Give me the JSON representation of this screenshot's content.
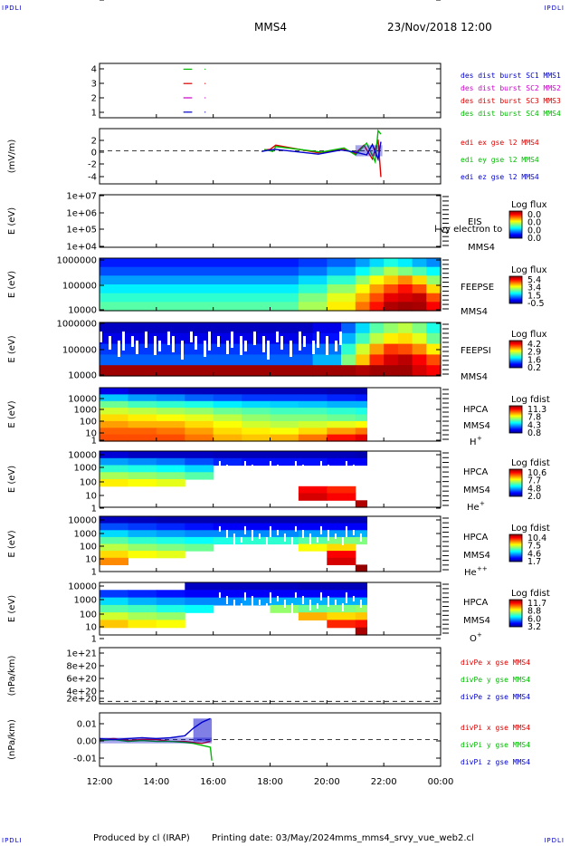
{
  "header": {
    "mission": "MMS4",
    "date": "23/Nov/2018 12:00",
    "corner_tag": "IPDLI"
  },
  "footer": {
    "produced_by": "Produced by  cl (IRAP)",
    "printing_date": "Printing date: 03/May/2024",
    "script": "mms_mms4_srvy_vue_web2.cl"
  },
  "time_axis": {
    "ticks": [
      "12:00",
      "14:00",
      "16:00",
      "18:00",
      "20:00",
      "22:00",
      "00:00"
    ],
    "start_hour": 12,
    "end_hour": 24
  },
  "colors": {
    "red": "#dd0000",
    "green": "#00bb00",
    "blue": "#0000cc",
    "magenta": "#cc00cc",
    "black": "#000000"
  },
  "chart_data": [
    {
      "type": "scatter",
      "id": "burst",
      "yticks": [
        "4",
        "3",
        "2",
        "1"
      ],
      "ylim": [
        0.6,
        4.4
      ],
      "legend": [
        {
          "label": "des dist burst SC1 MMS1",
          "color": "#0000cc"
        },
        {
          "label": "des dist burst SC2 MMS2",
          "color": "#cc00cc"
        },
        {
          "label": "des dist burst SC3 MMS3",
          "color": "#dd0000"
        },
        {
          "label": "des dist burst SC4 MMS4",
          "color": "#00bb00"
        }
      ],
      "series": [
        {
          "name": "des dist burst SC4 MMS4",
          "y": 4,
          "x": [
            14.95,
            15.1,
            15.7
          ],
          "color": "#00bb00"
        },
        {
          "name": "des dist burst SC3 MMS3",
          "y": 3,
          "x": [
            14.95,
            15.1,
            15.7
          ],
          "color": "#dd0000"
        },
        {
          "name": "des dist burst SC2 MMS2",
          "y": 2,
          "x": [
            14.95,
            15.1,
            15.7
          ],
          "color": "#cc00cc"
        },
        {
          "name": "des dist burst SC1 MMS1",
          "y": 1,
          "x": [
            14.95,
            15.1,
            15.7
          ],
          "color": "#0000cc"
        }
      ]
    },
    {
      "type": "line",
      "id": "edi",
      "ylabel": "(mV/m)",
      "yticks": [
        "2",
        "0",
        "-2",
        "-4"
      ],
      "ylim": [
        -4.8,
        3.2
      ],
      "legend": [
        {
          "label": "edi ex gse l2 MMS4",
          "color": "#dd0000"
        },
        {
          "label": "edi ey gse l2 MMS4",
          "color": "#00bb00"
        },
        {
          "label": "edi ez gse l2 MMS4",
          "color": "#0000cc"
        }
      ],
      "series": [
        {
          "name": "edi ex gse l2 MMS4",
          "color": "#dd0000",
          "x": [
            17.8,
            18.0,
            18.2,
            19.7,
            20.6,
            21.0,
            21.3,
            21.6,
            21.8,
            21.9
          ],
          "y": [
            0.1,
            0.2,
            0.8,
            -0.3,
            0.2,
            -0.4,
            0.8,
            -1.2,
            1.6,
            -3.8
          ]
        },
        {
          "name": "edi ey gse l2 MMS4",
          "color": "#00bb00",
          "x": [
            17.8,
            18.1,
            18.2,
            19.8,
            20.6,
            21.0,
            21.4,
            21.7,
            21.8,
            21.9
          ],
          "y": [
            0.2,
            -0.1,
            0.6,
            -0.2,
            0.4,
            -0.6,
            1.1,
            -1.6,
            2.9,
            2.4
          ]
        },
        {
          "name": "edi ez gse l2 MMS4",
          "color": "#0000cc",
          "x": [
            17.7,
            18.0,
            18.2,
            19.7,
            20.5,
            21.0,
            21.4,
            21.6,
            21.8,
            21.9
          ],
          "y": [
            -0.1,
            0.1,
            0.2,
            -0.5,
            0.1,
            -0.2,
            -0.6,
            0.9,
            -1.2,
            1.3
          ]
        }
      ]
    },
    {
      "type": "heatmap",
      "id": "eis",
      "ylabel": "E (eV)",
      "yticks": [
        "1e+07",
        "1e+06",
        "1e+05",
        "1e+04"
      ],
      "labels": [
        "EIS",
        "MMS4"
      ],
      "overlay_label": "l-vy electron to",
      "colorbar_title": "Log flux",
      "colorbar_ticks": [
        "0.0",
        "0.0",
        "0.0",
        "0.0"
      ],
      "cells": []
    },
    {
      "type": "heatmap",
      "id": "feepse",
      "ylabel": "E (eV)",
      "yticks": [
        "1000000",
        "100000",
        "10000"
      ],
      "labels": [
        "FEEPSE",
        "MMS4"
      ],
      "colorbar_title": "Log flux",
      "colorbar_ticks": [
        "5.4",
        "3.4",
        "1.5",
        "-0.5"
      ],
      "x_breaks": [
        12.0,
        19.0,
        20.0,
        21.0,
        21.5,
        22.0,
        22.5,
        23.0,
        23.5,
        24.0
      ],
      "rows": [
        [
          0.15,
          0.18,
          0.22,
          0.28,
          0.34,
          0.4,
          0.36,
          0.3,
          0.26
        ],
        [
          0.2,
          0.24,
          0.3,
          0.38,
          0.46,
          0.55,
          0.5,
          0.45,
          0.38
        ],
        [
          0.28,
          0.34,
          0.42,
          0.52,
          0.62,
          0.68,
          0.74,
          0.66,
          0.52
        ],
        [
          0.36,
          0.42,
          0.52,
          0.62,
          0.72,
          0.8,
          0.86,
          0.8,
          0.66
        ],
        [
          0.42,
          0.5,
          0.6,
          0.7,
          0.8,
          0.9,
          0.92,
          0.94,
          0.8
        ],
        [
          0.46,
          0.54,
          0.64,
          0.76,
          0.86,
          0.96,
          0.98,
          0.97,
          0.88
        ]
      ]
    },
    {
      "type": "heatmap",
      "id": "feepsi",
      "ylabel": "E (eV)",
      "yticks": [
        "1000000",
        "100000",
        "10000"
      ],
      "labels": [
        "FEEPSI",
        "MMS4"
      ],
      "colorbar_title": "Log flux",
      "colorbar_ticks": [
        "4.2",
        "2.9",
        "1.6",
        "0.2"
      ],
      "x_breaks": [
        12.0,
        19.5,
        20.5,
        21.0,
        21.5,
        22.0,
        22.5,
        23.0,
        23.5,
        24.0
      ],
      "rows": [
        [
          0.06,
          0.1,
          0.22,
          0.34,
          0.46,
          0.52,
          0.56,
          0.5,
          0.4
        ],
        [
          0.1,
          0.14,
          0.3,
          0.44,
          0.56,
          0.64,
          0.66,
          0.6,
          0.48
        ],
        [
          0.18,
          0.24,
          0.42,
          0.58,
          0.72,
          0.82,
          0.8,
          0.74,
          0.64
        ],
        [
          0.22,
          0.3,
          0.5,
          0.68,
          0.84,
          0.92,
          0.95,
          0.88,
          0.8
        ],
        [
          0.98,
          0.98,
          0.98,
          0.96,
          0.98,
          0.98,
          0.98,
          0.92,
          0.88
        ]
      ]
    },
    {
      "type": "heatmap",
      "id": "hpca-h",
      "ylabel": "E (eV)",
      "yticks": [
        "10000",
        "1000",
        "100",
        "10",
        "1"
      ],
      "labels": [
        "HPCA",
        "MMS4",
        "H",
        "+"
      ],
      "colorbar_title": "Log fdist",
      "colorbar_ticks": [
        "11.3",
        "7.8",
        "4.3",
        "0.8"
      ],
      "x_breaks": [
        12.0,
        13.0,
        14.0,
        15.0,
        16.0,
        17.0,
        18.0,
        19.0,
        20.0,
        21.0,
        21.4
      ],
      "rows": [
        [
          0.1,
          0.06,
          0.06,
          0.05,
          0.05,
          0.05,
          0.05,
          0.05,
          0.04,
          0.04
        ],
        [
          0.32,
          0.28,
          0.26,
          0.22,
          0.2,
          0.18,
          0.18,
          0.18,
          0.16,
          0.15
        ],
        [
          0.48,
          0.44,
          0.42,
          0.4,
          0.36,
          0.34,
          0.33,
          0.32,
          0.3,
          0.3
        ],
        [
          0.58,
          0.56,
          0.54,
          0.52,
          0.48,
          0.46,
          0.44,
          0.44,
          0.42,
          0.4
        ],
        [
          0.66,
          0.64,
          0.62,
          0.6,
          0.56,
          0.52,
          0.5,
          0.5,
          0.48,
          0.46
        ],
        [
          0.72,
          0.7,
          0.7,
          0.66,
          0.62,
          0.58,
          0.56,
          0.58,
          0.6,
          0.62
        ],
        [
          0.78,
          0.78,
          0.76,
          0.72,
          0.66,
          0.64,
          0.62,
          0.66,
          0.72,
          0.76
        ],
        [
          0.8,
          0.8,
          0.8,
          0.76,
          0.7,
          0.68,
          0.7,
          0.76,
          0.86,
          0.9
        ]
      ]
    },
    {
      "type": "heatmap",
      "id": "hpca-he",
      "ylabel": "E (eV)",
      "yticks": [
        "10000",
        "1000",
        "100",
        "10",
        "1"
      ],
      "labels": [
        "HPCA",
        "MMS4",
        "He",
        "+"
      ],
      "colorbar_title": "Log fdist",
      "colorbar_ticks": [
        "10.6",
        "7.7",
        "4.8",
        "2.0"
      ],
      "x_breaks": [
        12.0,
        13.0,
        14.0,
        15.0,
        16.0,
        17.0,
        18.0,
        19.0,
        20.0,
        21.0,
        21.4
      ],
      "rows": [
        [
          0.08,
          0.06,
          0.06,
          0.06,
          0.05,
          0.05,
          0.05,
          0.05,
          0.05,
          0.04
        ],
        [
          0.28,
          0.26,
          0.24,
          0.2,
          0.16,
          0.14,
          0.14,
          0.14,
          0.12,
          0.12
        ],
        [
          0.42,
          0.4,
          0.38,
          0.34,
          -1,
          -1,
          -1,
          -1,
          -1,
          -1
        ],
        [
          0.54,
          0.52,
          0.5,
          0.46,
          -1,
          -1,
          -1,
          -1,
          -1,
          -1
        ],
        [
          0.64,
          0.62,
          0.6,
          -1,
          -1,
          -1,
          -1,
          -1,
          -1,
          -1
        ],
        [
          -1,
          -1,
          -1,
          -1,
          -1,
          -1,
          -1,
          0.88,
          0.84,
          -1
        ],
        [
          -1,
          -1,
          -1,
          -1,
          -1,
          -1,
          -1,
          0.92,
          0.88,
          -1
        ],
        [
          -1,
          -1,
          -1,
          -1,
          -1,
          -1,
          -1,
          -1,
          -1,
          0.96
        ]
      ]
    },
    {
      "type": "heatmap",
      "id": "hpca-hepp",
      "ylabel": "E (eV)",
      "yticks": [
        "10000",
        "1000",
        "100",
        "10",
        "1"
      ],
      "labels": [
        "HPCA",
        "MMS4",
        "He",
        "++"
      ],
      "colorbar_title": "Log fdist",
      "colorbar_ticks": [
        "10.4",
        "7.5",
        "4.6",
        "1.7"
      ],
      "x_breaks": [
        12.0,
        13.0,
        14.0,
        15.0,
        16.0,
        17.0,
        18.0,
        19.0,
        20.0,
        21.0,
        21.4
      ],
      "rows": [
        [
          0.06,
          0.05,
          0.04,
          0.04,
          0.04,
          0.04,
          0.04,
          0.04,
          0.04,
          0.04
        ],
        [
          0.2,
          0.18,
          0.16,
          0.14,
          0.12,
          0.12,
          0.12,
          0.12,
          0.12,
          0.12
        ],
        [
          0.34,
          0.3,
          0.28,
          0.26,
          0.26,
          0.26,
          0.26,
          0.28,
          0.28,
          0.3
        ],
        [
          0.46,
          0.42,
          0.4,
          0.38,
          0.4,
          0.42,
          0.42,
          0.46,
          0.5,
          0.5
        ],
        [
          0.56,
          0.52,
          0.5,
          0.48,
          -1,
          -1,
          -1,
          0.62,
          0.66,
          -1
        ],
        [
          0.66,
          0.62,
          0.6,
          -1,
          -1,
          -1,
          -1,
          -1,
          0.88,
          -1
        ],
        [
          0.74,
          -1,
          -1,
          -1,
          -1,
          -1,
          -1,
          -1,
          0.92,
          -1
        ],
        [
          -1,
          -1,
          -1,
          -1,
          -1,
          -1,
          -1,
          -1,
          -1,
          0.99
        ]
      ]
    },
    {
      "type": "heatmap",
      "id": "hpca-o",
      "ylabel": "E (eV)",
      "yticks": [
        "10000",
        "1000",
        "100",
        "10",
        "1"
      ],
      "labels": [
        "HPCA",
        "MMS4",
        "O",
        "+"
      ],
      "colorbar_title": "Log fdist",
      "colorbar_ticks": [
        "11.7",
        "8.8",
        "6.0",
        "3.2"
      ],
      "x_breaks": [
        12.0,
        13.0,
        14.0,
        15.0,
        16.0,
        17.0,
        18.0,
        19.0,
        20.0,
        21.0,
        21.4
      ],
      "rows": [
        [
          -1,
          -1,
          -1,
          0.06,
          0.06,
          0.06,
          0.06,
          0.05,
          0.05,
          0.05
        ],
        [
          0.18,
          0.16,
          0.14,
          0.12,
          0.12,
          0.12,
          0.12,
          0.12,
          0.12,
          0.12
        ],
        [
          0.34,
          0.3,
          0.28,
          0.26,
          0.26,
          0.28,
          0.3,
          0.3,
          0.3,
          0.3
        ],
        [
          0.46,
          0.44,
          0.4,
          0.38,
          -1,
          -1,
          0.52,
          0.48,
          0.5,
          0.52
        ],
        [
          0.58,
          0.54,
          0.52,
          -1,
          -1,
          -1,
          -1,
          0.7,
          0.66,
          0.68
        ],
        [
          0.68,
          0.64,
          0.62,
          -1,
          -1,
          -1,
          -1,
          -1,
          0.84,
          0.86
        ],
        [
          -1,
          -1,
          -1,
          -1,
          -1,
          -1,
          -1,
          -1,
          -1,
          0.97
        ]
      ]
    },
    {
      "type": "line",
      "id": "divpe",
      "ylabel": "(nPa/km)",
      "yticks": [
        "1e+21",
        "8e+20",
        "6e+20",
        "4e+20",
        "2e+20",
        "0"
      ],
      "ylim": [
        -5e+19,
        1.1e+21
      ],
      "legend": [
        {
          "label": "divPe x gse MMS4",
          "color": "#dd0000"
        },
        {
          "label": "divPe y gse MMS4",
          "color": "#00bb00"
        },
        {
          "label": "divPe z gse MMS4",
          "color": "#0000cc"
        }
      ],
      "series": []
    },
    {
      "type": "line",
      "id": "divpi",
      "ylabel": "(nPa/km)",
      "yticks": [
        "0.01",
        "0.00",
        "-0.01"
      ],
      "ylim": [
        -0.014,
        0.014
      ],
      "legend": [
        {
          "label": "divPi x gse MMS4",
          "color": "#dd0000"
        },
        {
          "label": "divPi y gse MMS4",
          "color": "#00bb00"
        },
        {
          "label": "divPi z gse MMS4",
          "color": "#0000cc"
        }
      ],
      "series": [
        {
          "name": "divPi x gse MMS4",
          "color": "#dd0000",
          "x": [
            12.0,
            12.5,
            13.0,
            13.5,
            14.0,
            14.5,
            15.0,
            15.3,
            15.6,
            15.9
          ],
          "y": [
            0.0,
            0.0005,
            -0.0005,
            0.0,
            0.0,
            -0.001,
            -0.001,
            -0.0015,
            -0.002,
            -0.001
          ]
        },
        {
          "name": "divPi y gse MMS4",
          "color": "#00bb00",
          "x": [
            12.0,
            12.5,
            13.0,
            13.5,
            14.0,
            14.5,
            15.0,
            15.3,
            15.6,
            15.9,
            15.95
          ],
          "y": [
            -0.0005,
            0.0,
            -0.001,
            -0.0005,
            -0.001,
            -0.001,
            -0.0015,
            -0.002,
            -0.003,
            -0.004,
            -0.011
          ]
        },
        {
          "name": "divPi z gse MMS4",
          "color": "#0000cc",
          "x": [
            12.0,
            12.5,
            13.0,
            13.5,
            14.0,
            14.5,
            15.0,
            15.3,
            15.6,
            15.9
          ],
          "y": [
            0.0005,
            0.0,
            0.0005,
            0.001,
            0.0005,
            0.001,
            0.002,
            0.006,
            0.009,
            0.011
          ]
        }
      ]
    }
  ]
}
